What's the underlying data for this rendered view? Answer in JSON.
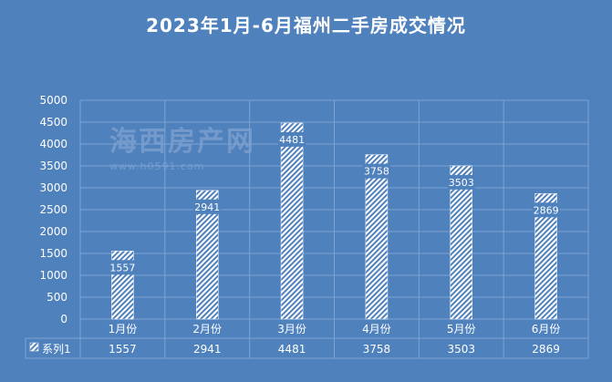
{
  "chart_data": {
    "type": "bar",
    "title": "2023年1月-6月福州二手房成交情况",
    "categories": [
      "1月份",
      "2月份",
      "3月份",
      "4月份",
      "5月份",
      "6月份"
    ],
    "series": [
      {
        "name": "系列1",
        "values": [
          1557,
          2941,
          4481,
          3758,
          3503,
          2869
        ]
      }
    ],
    "data_labels": [
      "1557",
      "2941",
      "4481",
      "3758",
      "3503",
      "2869"
    ],
    "y_ticks": [
      "0",
      "500",
      "1000",
      "1500",
      "2000",
      "2500",
      "3000",
      "3500",
      "4000",
      "4500",
      "5000"
    ],
    "ylim": [
      0,
      5000
    ],
    "grid": true,
    "legend": "data-table-bottom",
    "bar_fill": "diagonal-hatch",
    "colors": {
      "background": "#4f81bd",
      "bar": "#ffffff",
      "grid": "#7fa3d3",
      "text": "#ffffff"
    }
  },
  "watermark": {
    "logo_text": "海西房产网",
    "url_text": "www.h0591.com"
  }
}
